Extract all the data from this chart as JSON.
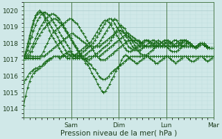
{
  "xlabel": "Pression niveau de la mer( hPa )",
  "bg_color": "#d0e8e8",
  "grid_color_major": "#aacccc",
  "grid_color_minor": "#bbdddd",
  "line_color": "#1a6b1a",
  "ylim": [
    1013.5,
    1020.5
  ],
  "xlim": [
    0,
    96
  ],
  "yticks": [
    1014,
    1015,
    1016,
    1017,
    1018,
    1019,
    1020
  ],
  "xtick_positions": [
    0,
    24,
    48,
    72,
    96
  ],
  "xtick_labels": [
    "",
    "Sam",
    "Dim",
    "Lun",
    "Mar"
  ],
  "series": [
    [
      1014.2,
      1014.8,
      1015.3,
      1015.7,
      1016.0,
      1016.2,
      1016.3,
      1016.4,
      1016.5,
      1016.6,
      1016.8,
      1016.9,
      1017.0,
      1017.1,
      1017.1,
      1017.2,
      1017.2,
      1017.2,
      1017.1,
      1017.2,
      1017.3,
      1017.4,
      1017.5,
      1017.5,
      1017.4,
      1017.3,
      1017.2,
      1017.2,
      1017.2,
      1017.1,
      1017.0,
      1016.8,
      1016.7,
      1016.5,
      1016.2,
      1016.0,
      1015.8,
      1015.5,
      1015.3,
      1015.1,
      1015.0,
      1015.1,
      1015.3,
      1015.5,
      1015.8,
      1016.0,
      1016.3,
      1016.5,
      1016.7,
      1017.0,
      1017.2,
      1017.3,
      1017.2,
      1017.1,
      1017.0,
      1016.9,
      1016.8,
      1016.8,
      1016.9,
      1017.0,
      1017.1,
      1017.2,
      1017.2,
      1017.1,
      1017.0,
      1016.9,
      1016.8,
      1016.8,
      1016.9,
      1017.0,
      1017.1,
      1017.2,
      1017.2,
      1017.1,
      1017.0,
      1016.9,
      1016.8,
      1016.9,
      1017.0,
      1017.1,
      1017.2,
      1017.2,
      1017.1,
      1017.0,
      1016.9,
      1016.9,
      1017.0,
      1017.1,
      1017.2,
      1017.2,
      1017.1,
      1017.0,
      1016.9,
      1017.0,
      1017.1,
      1017.2
    ],
    [
      1015.6,
      1015.8,
      1016.0,
      1016.2,
      1016.3,
      1016.4,
      1016.5,
      1016.5,
      1016.6,
      1016.6,
      1016.7,
      1016.8,
      1016.9,
      1017.0,
      1017.1,
      1017.2,
      1017.2,
      1017.2,
      1017.2,
      1017.2,
      1017.2,
      1017.2,
      1017.2,
      1017.3,
      1017.3,
      1017.3,
      1017.3,
      1017.3,
      1017.2,
      1017.2,
      1017.1,
      1017.0,
      1016.9,
      1016.8,
      1016.7,
      1016.5,
      1016.4,
      1016.2,
      1016.0,
      1015.9,
      1015.8,
      1015.8,
      1015.9,
      1016.0,
      1016.2,
      1016.3,
      1016.4,
      1016.5,
      1016.6,
      1016.7,
      1016.8,
      1016.9,
      1017.0,
      1017.1,
      1017.2,
      1017.2,
      1017.2,
      1017.2,
      1017.2,
      1017.2,
      1017.2,
      1017.2,
      1017.2,
      1017.2,
      1017.2,
      1017.2,
      1017.2,
      1017.2,
      1017.2,
      1017.2,
      1017.2,
      1017.2,
      1017.2,
      1017.2,
      1017.2,
      1017.2,
      1017.2,
      1017.2,
      1017.2,
      1017.2,
      1017.2,
      1017.2,
      1017.2,
      1017.2,
      1017.2,
      1017.2,
      1017.2,
      1017.2,
      1017.2,
      1017.2,
      1017.2,
      1017.2,
      1017.2,
      1017.2,
      1017.2,
      1017.2,
      1017.2
    ],
    [
      1017.1,
      1017.1,
      1017.1,
      1017.2,
      1017.2,
      1017.2,
      1017.2,
      1017.2,
      1017.2,
      1017.3,
      1017.5,
      1017.8,
      1018.0,
      1018.3,
      1018.5,
      1018.7,
      1018.8,
      1018.9,
      1019.0,
      1019.1,
      1019.2,
      1019.3,
      1019.4,
      1019.5,
      1019.5,
      1019.4,
      1019.3,
      1019.2,
      1019.0,
      1018.8,
      1018.6,
      1018.4,
      1018.2,
      1018.0,
      1017.8,
      1017.6,
      1017.4,
      1017.2,
      1017.1,
      1017.0,
      1017.0,
      1017.0,
      1017.1,
      1017.2,
      1017.3,
      1017.4,
      1017.5,
      1017.6,
      1017.7,
      1017.8,
      1017.9,
      1018.0,
      1018.1,
      1018.2,
      1018.2,
      1018.2,
      1018.2,
      1018.2,
      1018.2,
      1018.1,
      1018.0,
      1017.9,
      1017.8,
      1017.8,
      1017.8,
      1017.8,
      1017.8,
      1017.9,
      1018.0,
      1018.0,
      1018.0,
      1017.9,
      1017.8,
      1017.8,
      1017.8,
      1017.8,
      1017.9,
      1018.0,
      1018.1,
      1018.2,
      1018.2,
      1018.2,
      1018.2,
      1018.1,
      1018.0,
      1017.9,
      1017.8,
      1017.7,
      1017.8,
      1017.9,
      1018.0,
      1018.0,
      1017.9,
      1017.8,
      1017.7,
      1017.7,
      1017.7
    ],
    [
      1017.1,
      1017.1,
      1017.2,
      1017.3,
      1017.5,
      1017.8,
      1018.0,
      1018.3,
      1018.5,
      1018.7,
      1018.9,
      1019.0,
      1019.2,
      1019.3,
      1019.4,
      1019.5,
      1019.5,
      1019.4,
      1019.3,
      1019.2,
      1019.0,
      1018.8,
      1018.6,
      1018.4,
      1018.2,
      1018.0,
      1017.8,
      1017.6,
      1017.4,
      1017.2,
      1017.1,
      1017.0,
      1017.0,
      1017.0,
      1017.1,
      1017.2,
      1017.2,
      1017.2,
      1017.2,
      1017.3,
      1017.4,
      1017.5,
      1017.6,
      1017.7,
      1017.8,
      1017.9,
      1018.0,
      1018.1,
      1018.2,
      1018.3,
      1018.4,
      1018.5,
      1018.6,
      1018.6,
      1018.5,
      1018.4,
      1018.3,
      1018.2,
      1018.1,
      1018.0,
      1017.9,
      1017.8,
      1017.8,
      1017.8,
      1017.8,
      1017.9,
      1018.0,
      1018.1,
      1018.2,
      1018.1,
      1018.0,
      1017.9,
      1017.8,
      1017.7,
      1017.6,
      1017.5,
      1017.5,
      1017.5,
      1017.6,
      1017.7,
      1017.8,
      1017.9,
      1018.0,
      1018.0,
      1018.0,
      1017.9,
      1017.8,
      1017.7,
      1017.8,
      1017.9,
      1018.0,
      1018.0,
      1017.9,
      1017.8,
      1017.7,
      1017.7,
      1017.7
    ],
    [
      1017.1,
      1017.2,
      1017.3,
      1017.5,
      1017.8,
      1018.0,
      1018.3,
      1018.6,
      1018.9,
      1019.1,
      1019.3,
      1019.5,
      1019.6,
      1019.7,
      1019.8,
      1019.8,
      1019.7,
      1019.6,
      1019.5,
      1019.3,
      1019.1,
      1018.9,
      1018.7,
      1018.5,
      1018.3,
      1018.1,
      1017.9,
      1017.7,
      1017.5,
      1017.3,
      1017.2,
      1017.1,
      1017.1,
      1017.2,
      1017.2,
      1017.2,
      1017.3,
      1017.4,
      1017.5,
      1017.6,
      1017.7,
      1017.8,
      1017.9,
      1018.0,
      1018.2,
      1018.4,
      1018.6,
      1018.8,
      1019.0,
      1019.1,
      1019.0,
      1018.9,
      1018.7,
      1018.5,
      1018.3,
      1018.1,
      1017.9,
      1017.7,
      1017.5,
      1017.4,
      1017.3,
      1017.3,
      1017.3,
      1017.4,
      1017.5,
      1017.6,
      1017.7,
      1017.8,
      1017.9,
      1018.0,
      1018.1,
      1018.2,
      1018.2,
      1018.2,
      1018.1,
      1018.0,
      1017.9,
      1017.8,
      1017.9,
      1018.0,
      1018.1,
      1018.2,
      1018.2,
      1018.1,
      1018.0,
      1017.9,
      1017.8,
      1017.8,
      1017.9,
      1018.0,
      1018.0,
      1017.9,
      1017.8,
      1017.7,
      1017.7,
      1017.7,
      1017.7
    ],
    [
      1017.1,
      1017.3,
      1017.6,
      1018.0,
      1018.4,
      1018.8,
      1019.1,
      1019.4,
      1019.6,
      1019.8,
      1019.9,
      1019.9,
      1019.8,
      1019.7,
      1019.5,
      1019.3,
      1019.1,
      1018.9,
      1018.7,
      1018.5,
      1018.3,
      1018.1,
      1017.9,
      1017.7,
      1017.5,
      1017.3,
      1017.2,
      1017.1,
      1017.1,
      1017.2,
      1017.2,
      1017.3,
      1017.4,
      1017.5,
      1017.6,
      1017.7,
      1017.8,
      1017.9,
      1018.0,
      1018.2,
      1018.4,
      1018.6,
      1018.8,
      1019.0,
      1019.2,
      1019.4,
      1019.5,
      1019.4,
      1019.2,
      1019.0,
      1018.8,
      1018.6,
      1018.4,
      1018.2,
      1018.0,
      1017.8,
      1017.7,
      1017.6,
      1017.6,
      1017.6,
      1017.7,
      1017.8,
      1017.9,
      1018.0,
      1018.1,
      1018.2,
      1018.2,
      1018.1,
      1018.0,
      1017.9,
      1017.8,
      1017.8,
      1017.8,
      1017.9,
      1018.0,
      1018.1,
      1018.2,
      1018.2,
      1018.1,
      1018.0,
      1017.9,
      1017.8,
      1017.8,
      1017.8,
      1017.8,
      1017.8,
      1017.8,
      1017.7,
      1017.8,
      1017.9,
      1018.0,
      1018.0,
      1017.9,
      1017.8,
      1017.7,
      1017.7,
      1017.7
    ],
    [
      1017.1,
      1017.4,
      1017.8,
      1018.3,
      1018.8,
      1019.2,
      1019.6,
      1019.8,
      1019.9,
      1019.9,
      1019.8,
      1019.6,
      1019.4,
      1019.2,
      1019.0,
      1018.8,
      1018.6,
      1018.4,
      1018.2,
      1018.0,
      1017.8,
      1017.6,
      1017.4,
      1017.3,
      1017.2,
      1017.1,
      1017.1,
      1017.2,
      1017.3,
      1017.4,
      1017.5,
      1017.6,
      1017.7,
      1017.8,
      1017.9,
      1018.0,
      1018.2,
      1018.4,
      1018.6,
      1018.8,
      1019.0,
      1019.2,
      1019.4,
      1019.5,
      1019.5,
      1019.4,
      1019.2,
      1019.0,
      1018.8,
      1018.6,
      1018.4,
      1018.2,
      1018.0,
      1017.8,
      1017.7,
      1017.6,
      1017.6,
      1017.7,
      1017.8,
      1017.9,
      1018.0,
      1018.1,
      1018.2,
      1018.2,
      1018.1,
      1018.0,
      1017.9,
      1017.8,
      1017.8,
      1017.8,
      1017.9,
      1018.0,
      1018.1,
      1018.1,
      1018.0,
      1017.9,
      1017.8,
      1017.8,
      1017.9,
      1018.0,
      1018.1,
      1018.2,
      1018.2,
      1018.1,
      1018.0,
      1017.9,
      1017.8,
      1017.8,
      1017.9,
      1018.0,
      1018.0,
      1017.9,
      1017.8,
      1017.7,
      1017.7,
      1017.7,
      1017.7
    ],
    [
      1017.0,
      1017.5,
      1018.0,
      1018.5,
      1019.0,
      1019.4,
      1019.7,
      1019.9,
      1020.0,
      1019.9,
      1019.7,
      1019.4,
      1019.1,
      1018.8,
      1018.5,
      1018.3,
      1018.1,
      1017.9,
      1017.7,
      1017.5,
      1017.3,
      1017.2,
      1017.1,
      1017.1,
      1017.2,
      1017.2,
      1017.3,
      1017.4,
      1017.5,
      1017.6,
      1017.7,
      1017.8,
      1017.9,
      1018.0,
      1018.1,
      1018.3,
      1018.5,
      1018.7,
      1018.9,
      1019.1,
      1019.3,
      1019.4,
      1019.4,
      1019.3,
      1019.1,
      1018.9,
      1018.7,
      1018.5,
      1018.3,
      1018.1,
      1017.9,
      1017.7,
      1017.6,
      1017.5,
      1017.5,
      1017.6,
      1017.7,
      1017.8,
      1017.9,
      1018.0,
      1018.1,
      1018.2,
      1018.2,
      1018.1,
      1018.0,
      1017.9,
      1017.8,
      1017.8,
      1017.9,
      1018.0,
      1018.1,
      1018.1,
      1018.0,
      1017.9,
      1017.8,
      1017.8,
      1017.9,
      1018.0,
      1018.0,
      1017.9,
      1017.8,
      1017.8,
      1017.9,
      1018.0,
      1018.0,
      1017.9,
      1017.8,
      1017.8,
      1017.9,
      1018.0,
      1018.0,
      1017.9,
      1017.8,
      1017.7,
      1017.7,
      1017.7,
      1017.7
    ],
    [
      1017.1,
      1017.1,
      1017.1,
      1017.1,
      1017.1,
      1017.1,
      1017.1,
      1017.1,
      1017.1,
      1017.2,
      1017.2,
      1017.3,
      1017.4,
      1017.5,
      1017.6,
      1017.7,
      1017.8,
      1017.9,
      1018.0,
      1018.1,
      1018.2,
      1018.3,
      1018.4,
      1018.5,
      1018.6,
      1018.6,
      1018.5,
      1018.4,
      1018.3,
      1018.2,
      1018.1,
      1018.0,
      1017.9,
      1017.8,
      1017.8,
      1017.8,
      1017.8,
      1017.8,
      1017.8,
      1017.9,
      1018.0,
      1018.1,
      1018.2,
      1018.3,
      1018.4,
      1018.5,
      1018.6,
      1018.7,
      1018.8,
      1018.8,
      1018.7,
      1018.6,
      1018.5,
      1018.4,
      1018.3,
      1018.2,
      1018.1,
      1018.0,
      1017.9,
      1017.8,
      1017.8,
      1017.8,
      1017.8,
      1017.8,
      1017.9,
      1018.0,
      1018.0,
      1017.9,
      1017.8,
      1017.8,
      1017.8,
      1017.9,
      1018.0,
      1018.1,
      1018.1,
      1018.0,
      1017.9,
      1017.8,
      1017.8,
      1017.9,
      1018.0,
      1018.1,
      1018.1,
      1018.0,
      1017.9,
      1017.8,
      1017.8,
      1017.8,
      1017.9,
      1018.0,
      1018.0,
      1017.9,
      1017.8,
      1017.7,
      1017.7,
      1017.7,
      1017.7
    ]
  ]
}
